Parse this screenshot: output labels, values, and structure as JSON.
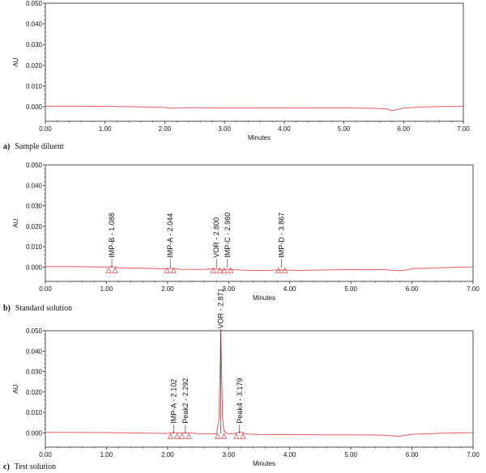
{
  "chart_data": [
    {
      "type": "line",
      "caption_letter": "a)",
      "caption_text": "Sample diluent",
      "xlabel": "Minutes",
      "ylabel": "AU",
      "xlim": [
        0,
        7
      ],
      "ylim": [
        -0.007,
        0.05
      ],
      "x_ticks": [
        "0.00",
        "1.00",
        "2.00",
        "3.00",
        "4.00",
        "5.00",
        "6.00",
        "7.00"
      ],
      "y_ticks": [
        "0.000",
        "0.010",
        "0.020",
        "0.030",
        "0.040",
        "0.050"
      ],
      "trace_color": "#e0474c",
      "series": [
        {
          "x": [
            0,
            0.5,
            1.0,
            1.5,
            2.0,
            2.1,
            2.2,
            2.5,
            3.0,
            3.5,
            4.0,
            4.5,
            5.0,
            5.5,
            5.7,
            5.8,
            5.9,
            6.0,
            6.3,
            6.6,
            7.0
          ],
          "y": [
            0.0003,
            0.0003,
            0.0002,
            0.0,
            -0.0003,
            -0.0008,
            -0.0005,
            -0.0004,
            -0.0006,
            -0.0006,
            -0.0005,
            -0.0005,
            -0.0006,
            -0.0007,
            -0.001,
            -0.0018,
            -0.0013,
            -0.0006,
            -0.0001,
            0.0001,
            0.0002
          ]
        }
      ],
      "peaks": []
    },
    {
      "type": "line",
      "caption_letter": "b)",
      "caption_text": "Standard solution",
      "xlabel": "Minutes",
      "ylabel": "AU",
      "xlim": [
        0,
        7
      ],
      "ylim": [
        -0.007,
        0.05
      ],
      "x_ticks": [
        "0.00",
        "1.00",
        "2.00",
        "3.00",
        "4.00",
        "5.00",
        "6.00",
        "7.00"
      ],
      "y_ticks": [
        "0.000",
        "0.010",
        "0.020",
        "0.030",
        "0.040",
        "0.050"
      ],
      "trace_color": "#e0474c",
      "series": [
        {
          "x": [
            0,
            0.5,
            1.0,
            1.088,
            1.2,
            1.5,
            2.0,
            2.044,
            2.2,
            2.5,
            2.8,
            2.9,
            2.98,
            3.2,
            3.5,
            3.867,
            4.2,
            4.5,
            5.0,
            5.5,
            5.8,
            5.9,
            6.0,
            6.5,
            7.0
          ],
          "y": [
            0.0002,
            0.0002,
            0.0,
            0.0003,
            -0.0004,
            -0.0005,
            -0.0009,
            -0.0006,
            -0.0011,
            -0.0012,
            -0.0009,
            -0.0015,
            -0.0011,
            -0.0015,
            -0.0017,
            -0.0014,
            -0.0016,
            -0.0014,
            -0.0013,
            -0.0012,
            -0.0018,
            -0.0014,
            -0.0008,
            -0.0003,
            0.0001
          ]
        }
      ],
      "peaks": [
        {
          "label": "IMP-B - 1.088",
          "x": 1.088
        },
        {
          "label": "IMP-A - 2.044",
          "x": 2.044
        },
        {
          "label": "VOR - 2.800",
          "x": 2.8
        },
        {
          "label": "IMP-C - 2.980",
          "x": 2.98
        },
        {
          "label": "IMP-D - 3.867",
          "x": 3.867
        }
      ]
    },
    {
      "type": "line",
      "caption_letter": "c)",
      "caption_text": "Test solution",
      "xlabel": "Minutes",
      "ylabel": "AU",
      "xlim": [
        0,
        7
      ],
      "ylim": [
        -0.007,
        0.05
      ],
      "x_ticks": [
        "0.00",
        "1.00",
        "2.00",
        "3.00",
        "4.00",
        "5.00",
        "6.00",
        "7.00"
      ],
      "y_ticks": [
        "0.000",
        "0.010",
        "0.020",
        "0.030",
        "0.040",
        "0.050"
      ],
      "trace_color": "#e0474c",
      "series": [
        {
          "x": [
            0,
            0.5,
            1.0,
            1.5,
            2.0,
            2.102,
            2.2,
            2.292,
            2.5,
            2.7,
            2.8,
            2.84,
            2.86,
            2.871,
            2.885,
            2.9,
            2.92,
            2.96,
            3.0,
            3.1,
            3.179,
            3.3,
            3.5,
            4.0,
            4.5,
            5.0,
            5.5,
            5.8,
            5.9,
            6.0,
            6.5,
            7.0
          ],
          "y": [
            0.0002,
            0.0002,
            0.0001,
            -0.0001,
            -0.0003,
            0.0002,
            -0.0002,
            0.0001,
            -0.0004,
            -0.0006,
            -0.0004,
            0.006,
            0.03,
            0.0505,
            0.03,
            0.008,
            0.0012,
            -0.0002,
            -0.0005,
            -0.0003,
            0.0005,
            -0.0006,
            -0.0008,
            -0.0009,
            -0.001,
            -0.001,
            -0.0011,
            -0.0017,
            -0.0012,
            -0.0007,
            -0.0002,
            0.0001
          ]
        }
      ],
      "peaks": [
        {
          "label": "IMP-A - 2.102",
          "x": 2.102
        },
        {
          "label": "Peak2 - 2.292",
          "x": 2.292
        },
        {
          "label": "VOR - 2.871",
          "x": 2.871
        },
        {
          "label": "Peak4 - 3.179",
          "x": 3.179
        }
      ]
    }
  ]
}
